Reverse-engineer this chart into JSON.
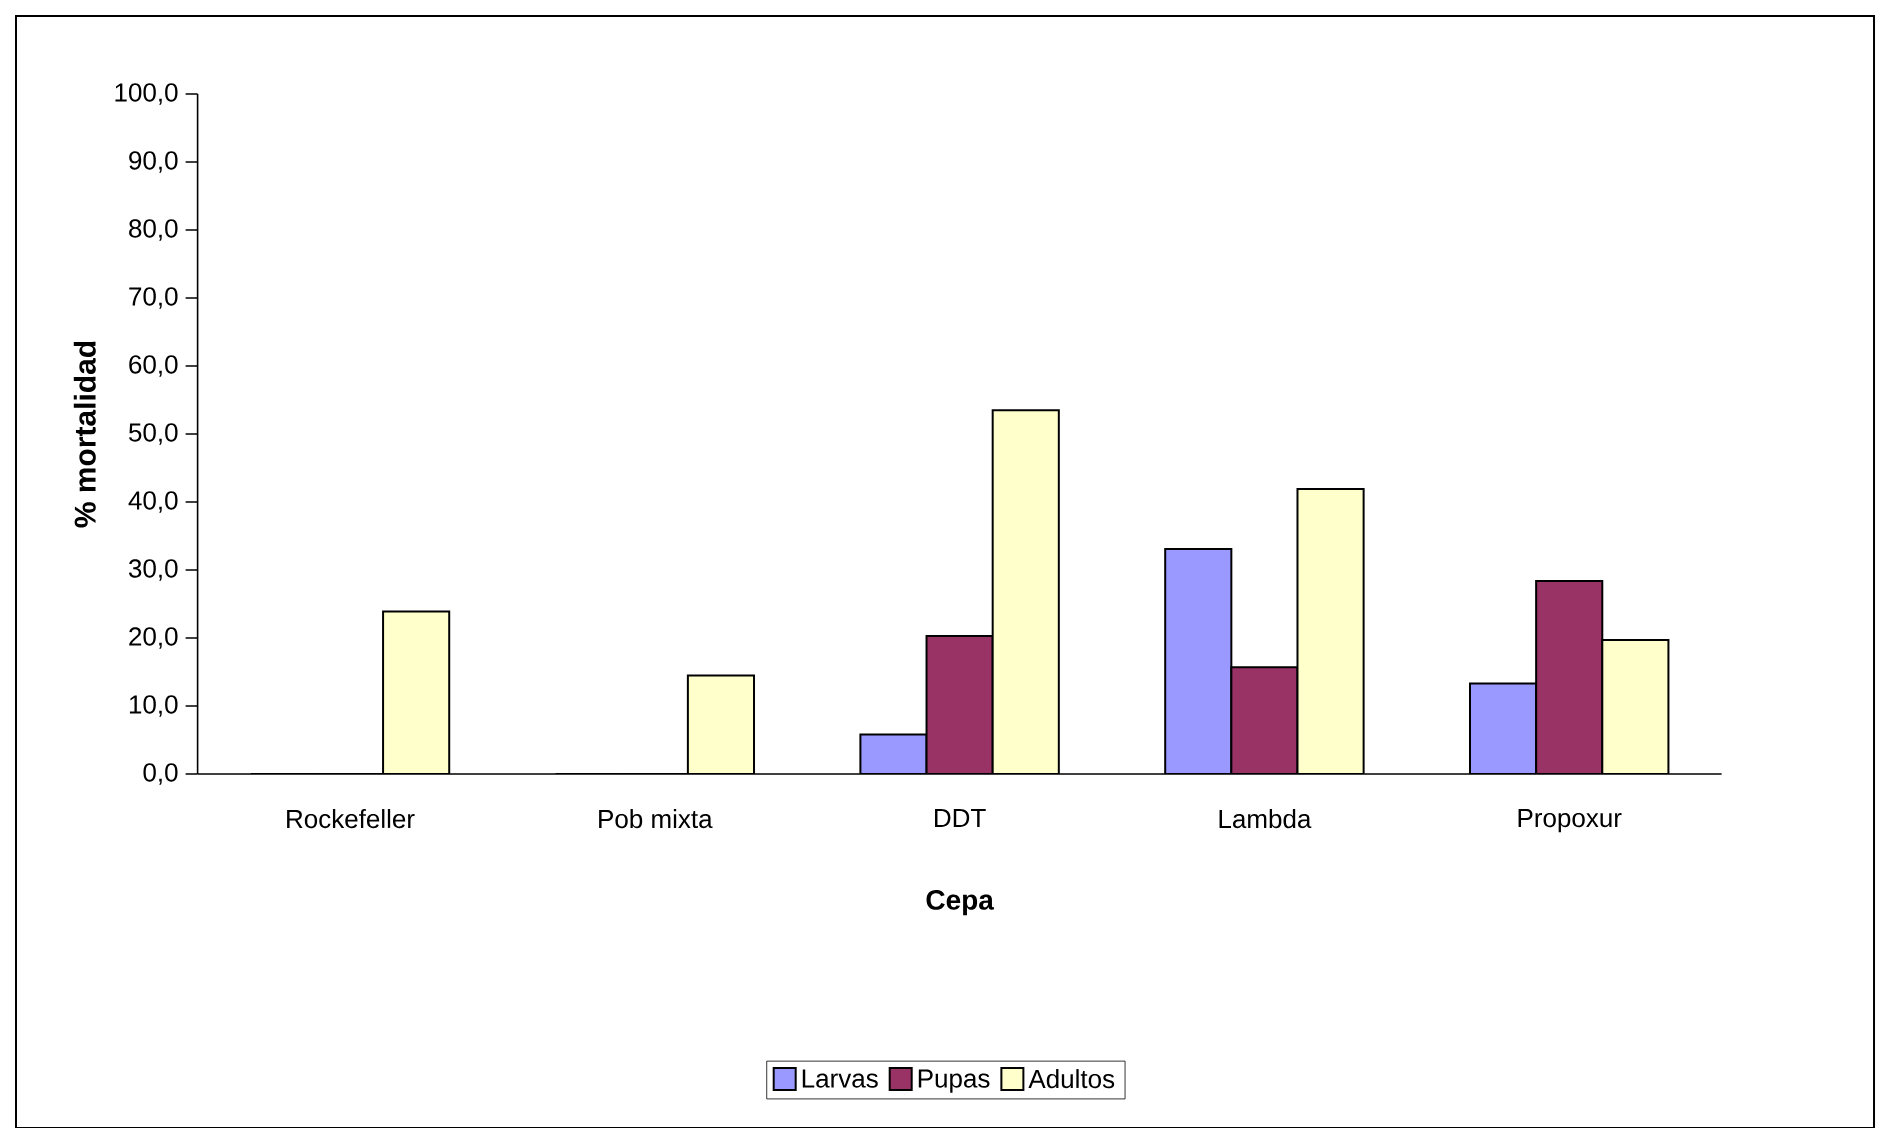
{
  "chart_data": {
    "type": "bar",
    "xlabel": "Cepa",
    "ylabel": "% mortalidad",
    "categories": [
      "Rockefeller",
      "Pob mixta",
      "DDT",
      "Lambda",
      "Propoxur"
    ],
    "series": [
      {
        "name": "Larvas",
        "color": "#9999ff",
        "values": [
          0,
          0,
          5.8,
          33.1,
          13.3
        ]
      },
      {
        "name": "Pupas",
        "color": "#993366",
        "values": [
          0,
          0,
          20.3,
          15.7,
          28.4
        ]
      },
      {
        "name": "Adultos",
        "color": "#ffffcc",
        "values": [
          23.9,
          14.5,
          53.5,
          41.9,
          19.7
        ]
      }
    ],
    "ylim": [
      0,
      100
    ],
    "yticks": [
      {
        "value": 0,
        "label": "0,0"
      },
      {
        "value": 10,
        "label": "10,0"
      },
      {
        "value": 20,
        "label": "20,0"
      },
      {
        "value": 30,
        "label": "30,0"
      },
      {
        "value": 40,
        "label": "40,0"
      },
      {
        "value": 50,
        "label": "50,0"
      },
      {
        "value": 60,
        "label": "60,0"
      },
      {
        "value": 70,
        "label": "70,0"
      },
      {
        "value": 80,
        "label": "80,0"
      },
      {
        "value": 90,
        "label": "90,0"
      },
      {
        "value": 100,
        "label": "100,0"
      }
    ],
    "grid": false,
    "legend": "bottom"
  }
}
